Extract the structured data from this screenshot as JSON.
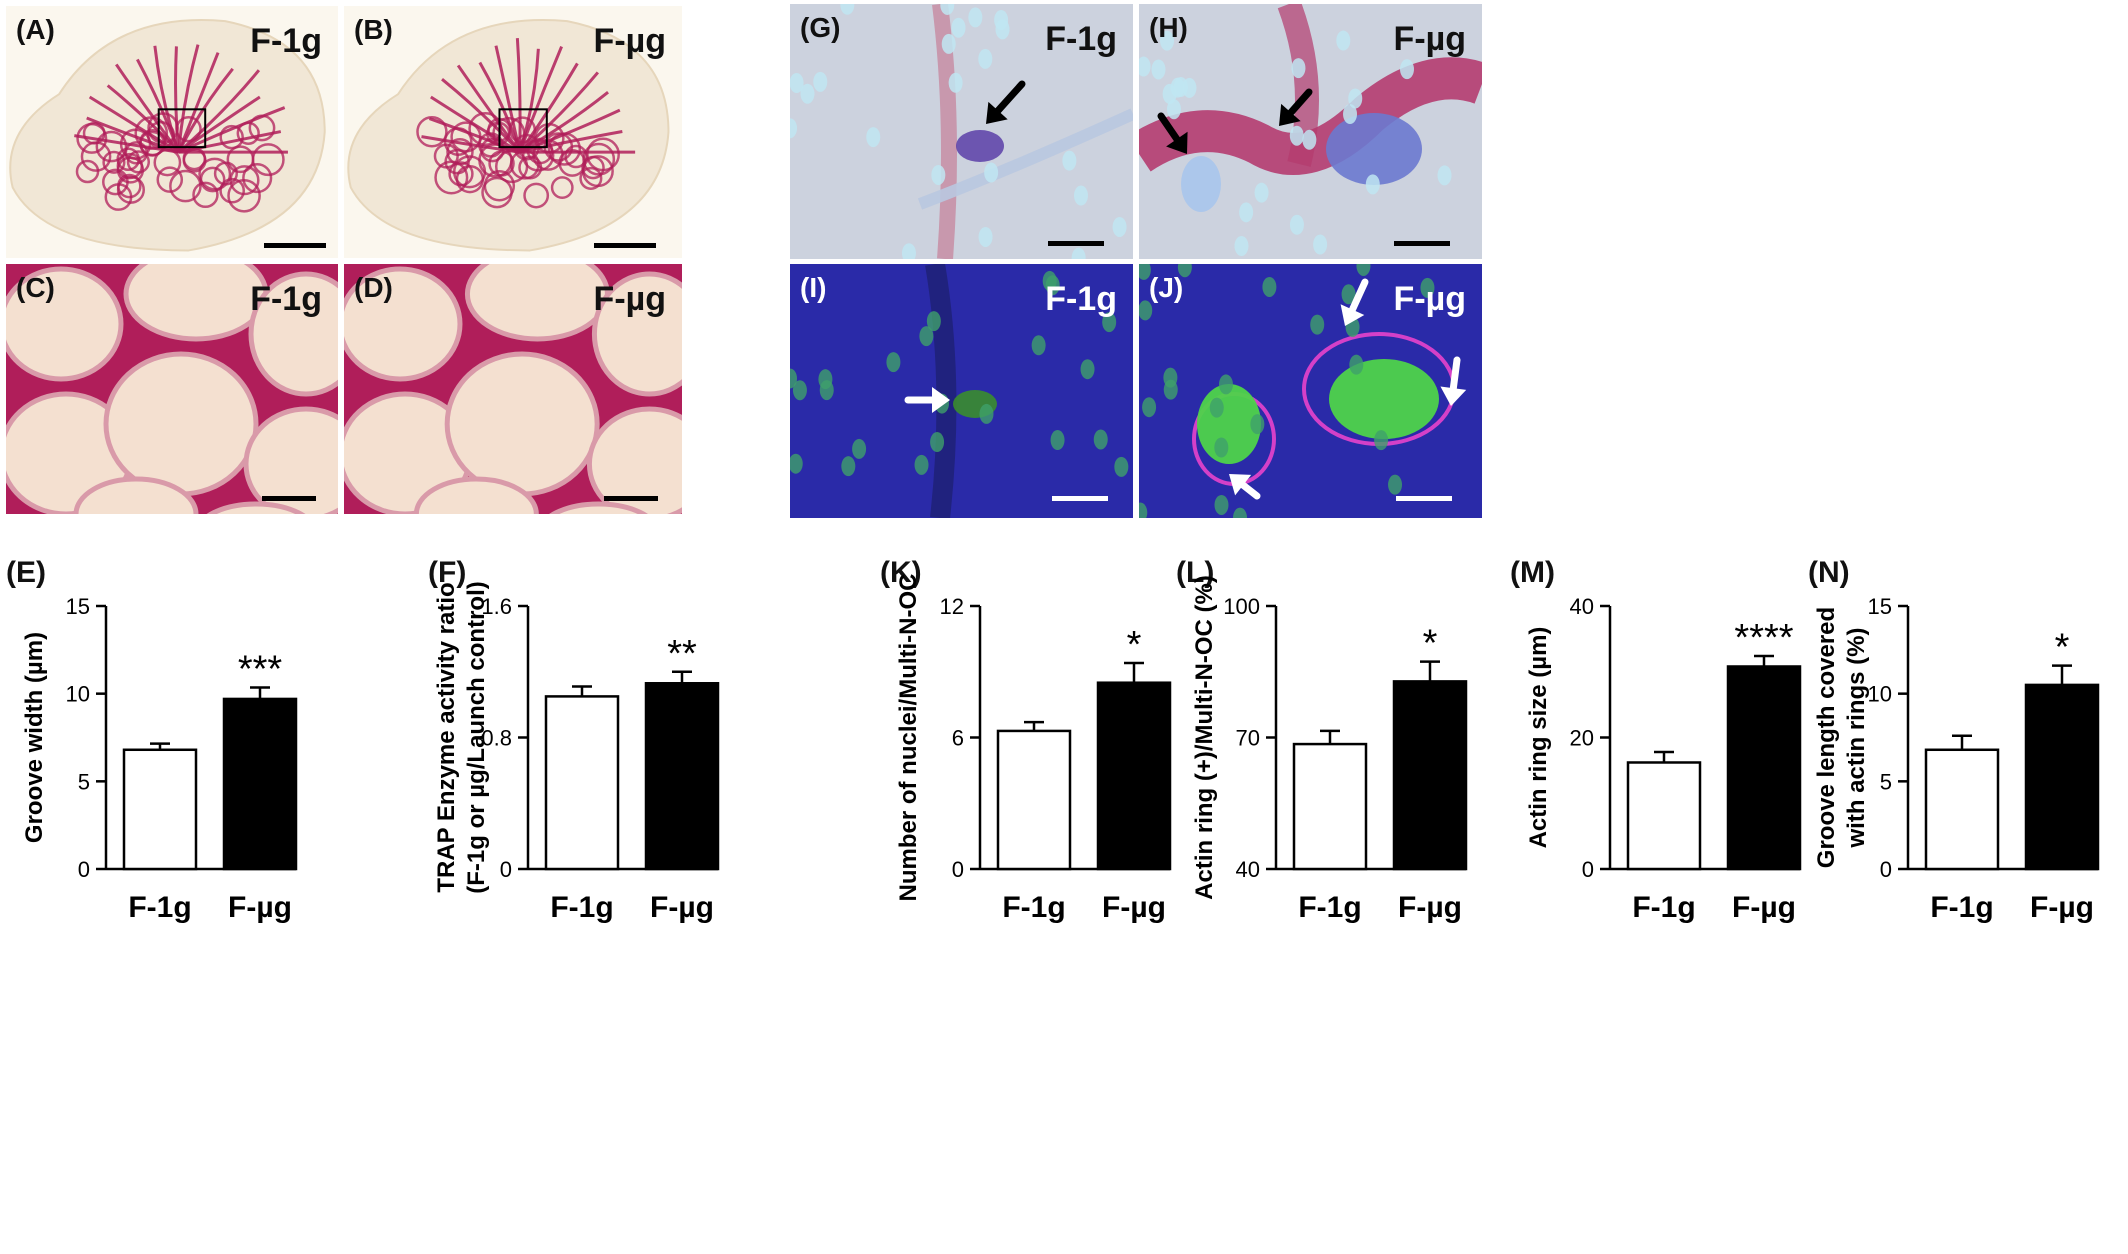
{
  "micrographs": [
    {
      "id": "A",
      "label": "(A)",
      "condition": "F-1g",
      "style": "wholemount"
    },
    {
      "id": "B",
      "label": "(B)",
      "condition": "F-µg",
      "style": "wholemount"
    },
    {
      "id": "C",
      "label": "(C)",
      "condition": "F-1g",
      "style": "closeup"
    },
    {
      "id": "D",
      "label": "(D)",
      "condition": "F-µg",
      "style": "closeup"
    },
    {
      "id": "G",
      "label": "(G)",
      "condition": "F-1g",
      "style": "brightfield"
    },
    {
      "id": "H",
      "label": "(H)",
      "condition": "F-µg",
      "style": "brightfield"
    },
    {
      "id": "I",
      "label": "(I)",
      "condition": "F-1g",
      "style": "fluorescence"
    },
    {
      "id": "J",
      "label": "(J)",
      "condition": "F-µg",
      "style": "fluorescence"
    }
  ],
  "colors": {
    "trap_stain": "#b01e5a",
    "tissue_bg": "#f1e7d6",
    "brightfield_bg": "#ccd2de",
    "fluor_bg": "#2a2aa8",
    "nuclei_fluor": "#4ed34a",
    "nuclei_bf": "#bfe6f2",
    "actin_ring": "#d440c8",
    "bar_control": "#ffffff",
    "bar_treated": "#000000"
  },
  "chart_data": [
    {
      "id": "E",
      "label": "(E)",
      "type": "bar",
      "categories": [
        "F-1g",
        "F-µg"
      ],
      "values": [
        6.8,
        9.7
      ],
      "errors": [
        0.35,
        0.65
      ],
      "ylabel": [
        "Groove width (µm)"
      ],
      "ylim": [
        0,
        15
      ],
      "yticks": [
        "0",
        "5",
        "10",
        "15"
      ],
      "significance": "***"
    },
    {
      "id": "F",
      "label": "(F)",
      "type": "bar",
      "categories": [
        "F-1g",
        "F-µg"
      ],
      "values": [
        1.05,
        1.13
      ],
      "errors": [
        0.06,
        0.07
      ],
      "ylabel": [
        "TRAP Enzyme activity ratio",
        "(F-1g or µg/Launch control)"
      ],
      "ylim": [
        0,
        1.6
      ],
      "yticks": [
        "0",
        "0.8",
        "1.6"
      ],
      "significance": "**"
    },
    {
      "id": "K",
      "label": "(K)",
      "type": "bar",
      "categories": [
        "F-1g",
        "F-µg"
      ],
      "values": [
        6.3,
        8.5
      ],
      "errors": [
        0.4,
        0.9
      ],
      "ylabel": [
        "Number of nuclei/Multi-N-OC"
      ],
      "ylim": [
        0,
        12
      ],
      "yticks": [
        "0",
        "6",
        "12"
      ],
      "significance": "*"
    },
    {
      "id": "L",
      "label": "(L)",
      "type": "bar",
      "categories": [
        "F-1g",
        "F-µg"
      ],
      "values": [
        68.5,
        82.8
      ],
      "errors": [
        3.0,
        4.5
      ],
      "ylabel": [
        "Actin ring (+)/Multi-N-OC (%)"
      ],
      "ylim": [
        40,
        100
      ],
      "yticks": [
        "40",
        "70",
        "100"
      ],
      "significance": "*"
    },
    {
      "id": "M",
      "label": "(M)",
      "type": "bar",
      "categories": [
        "F-1g",
        "F-µg"
      ],
      "values": [
        16.2,
        30.8
      ],
      "errors": [
        1.6,
        1.6
      ],
      "ylabel": [
        "Actin ring size (µm)"
      ],
      "ylim": [
        0,
        40
      ],
      "yticks": [
        "0",
        "20",
        "40"
      ],
      "significance": "****"
    },
    {
      "id": "N",
      "label": "(N)",
      "type": "bar",
      "categories": [
        "F-1g",
        "F-µg"
      ],
      "values": [
        6.8,
        10.5
      ],
      "errors": [
        0.8,
        1.1
      ],
      "ylabel": [
        "Groove length covered",
        "with actin rings (%)"
      ],
      "ylim": [
        0,
        15
      ],
      "yticks": [
        "0",
        "5",
        "10",
        "15"
      ],
      "significance": "*"
    }
  ]
}
